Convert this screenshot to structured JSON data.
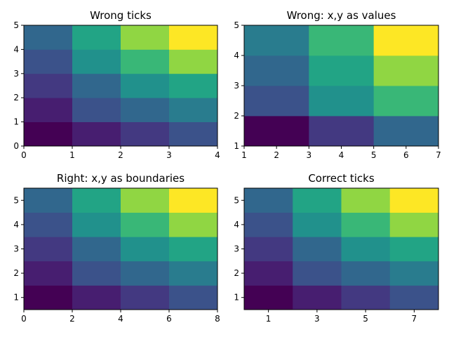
{
  "chart_data": [
    {
      "type": "heatmap",
      "title": "Wrong ticks",
      "colormap": "viridis",
      "value_range": [
        0,
        12
      ],
      "x_edges": [
        0,
        1,
        2,
        3,
        4
      ],
      "y_edges": [
        0,
        1,
        2,
        3,
        4,
        5
      ],
      "values": [
        [
          0,
          1,
          2,
          3
        ],
        [
          1,
          3,
          4,
          5
        ],
        [
          2,
          4,
          6,
          7
        ],
        [
          3,
          6,
          8,
          10
        ],
        [
          4,
          7,
          10,
          12
        ]
      ],
      "xlim": [
        0,
        4
      ],
      "ylim": [
        0,
        5
      ],
      "xticks": [
        0,
        1,
        2,
        3,
        4
      ],
      "yticks": [
        0,
        1,
        2,
        3,
        4,
        5
      ],
      "xlabel": "",
      "ylabel": "",
      "grid": false
    },
    {
      "type": "heatmap",
      "title": "Wrong: x,y as values",
      "colormap": "viridis",
      "value_range": [
        0,
        12
      ],
      "x_edges": [
        1,
        3,
        5,
        7
      ],
      "y_edges": [
        1,
        2,
        3,
        4,
        5
      ],
      "values": [
        [
          0,
          2,
          4
        ],
        [
          3,
          6,
          8
        ],
        [
          4,
          7,
          10
        ],
        [
          5,
          8,
          12
        ]
      ],
      "xlim": [
        1,
        7
      ],
      "ylim": [
        1,
        5
      ],
      "xticks": [
        1,
        2,
        3,
        4,
        5,
        6,
        7
      ],
      "yticks": [
        1,
        2,
        3,
        4,
        5
      ],
      "xlabel": "",
      "ylabel": "",
      "grid": false
    },
    {
      "type": "heatmap",
      "title": "Right: x,y as boundaries",
      "colormap": "viridis",
      "value_range": [
        0,
        12
      ],
      "x_edges": [
        0,
        2,
        4,
        6,
        8
      ],
      "y_edges": [
        0.5,
        1.5,
        2.5,
        3.5,
        4.5,
        5.5
      ],
      "values": [
        [
          0,
          1,
          2,
          3
        ],
        [
          1,
          3,
          4,
          5
        ],
        [
          2,
          4,
          6,
          7
        ],
        [
          3,
          6,
          8,
          10
        ],
        [
          4,
          7,
          10,
          12
        ]
      ],
      "xlim": [
        0,
        8
      ],
      "ylim": [
        0.5,
        5.5
      ],
      "xticks": [
        0,
        2,
        4,
        6,
        8
      ],
      "yticks": [
        1,
        2,
        3,
        4,
        5
      ],
      "xlabel": "",
      "ylabel": "",
      "grid": false
    },
    {
      "type": "heatmap",
      "title": "Correct ticks",
      "colormap": "viridis",
      "value_range": [
        0,
        12
      ],
      "x_edges": [
        0,
        2,
        4,
        6,
        8
      ],
      "y_edges": [
        0.5,
        1.5,
        2.5,
        3.5,
        4.5,
        5.5
      ],
      "values": [
        [
          0,
          1,
          2,
          3
        ],
        [
          1,
          3,
          4,
          5
        ],
        [
          2,
          4,
          6,
          7
        ],
        [
          3,
          6,
          8,
          10
        ],
        [
          4,
          7,
          10,
          12
        ]
      ],
      "xlim": [
        0,
        8
      ],
      "ylim": [
        0.5,
        5.5
      ],
      "xticks": [
        1,
        3,
        5,
        7
      ],
      "yticks": [
        1,
        2,
        3,
        4,
        5
      ],
      "xlabel": "",
      "ylabel": "",
      "grid": false
    }
  ]
}
